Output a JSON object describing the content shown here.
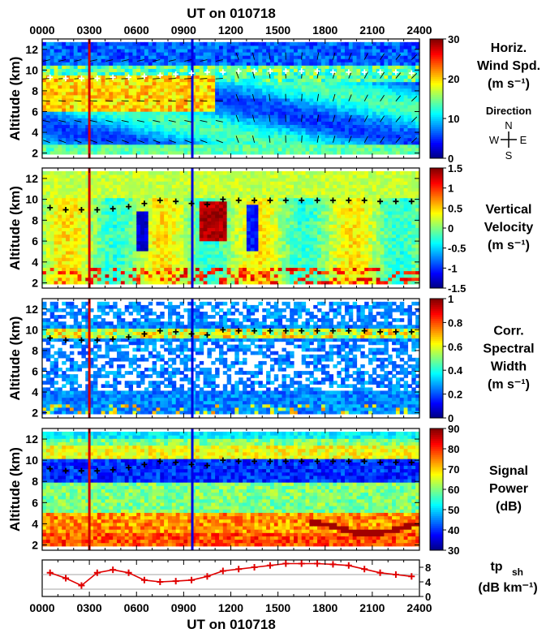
{
  "figure": {
    "top_title": "UT on 010718",
    "bottom_title": "UT on 010718"
  },
  "chart_data": [
    {
      "type": "heatmap",
      "id": "horiz",
      "ylabel": "Altitude (km)",
      "xlim": [
        0,
        2400
      ],
      "ylim": [
        1.5,
        13
      ],
      "x_ticks": [
        "0000",
        "0300",
        "0600",
        "0900",
        "1200",
        "1500",
        "1800",
        "2100",
        "2400"
      ],
      "y_ticks": [
        2,
        4,
        6,
        8,
        10,
        12
      ],
      "label_lines": [
        "Horiz.",
        "Wind Spd.",
        "(m s⁻¹)"
      ],
      "colorbar": {
        "min": 0,
        "max": 30,
        "ticks": [
          0,
          10,
          20,
          30
        ]
      },
      "direction_legend": {
        "title": "Direction",
        "N": "N",
        "S": "S",
        "E": "E",
        "W": "W"
      },
      "markers_alt_km": [
        9.3,
        9.2,
        9.2,
        9.2,
        9.3,
        9.3,
        9.4,
        9.5,
        9.6,
        9.7,
        9.8,
        9.8,
        9.9,
        9.9,
        9.9,
        9.9,
        9.9,
        9.9,
        9.8,
        9.8,
        9.8,
        9.8,
        9.8,
        9.7
      ]
    },
    {
      "type": "heatmap",
      "id": "vert",
      "ylabel": "Altitude (km)",
      "xlim": [
        0,
        2400
      ],
      "ylim": [
        1.5,
        13
      ],
      "y_ticks": [
        2,
        4,
        6,
        8,
        10,
        12
      ],
      "label_lines": [
        "Vertical",
        "Velocity",
        "(m s⁻¹)"
      ],
      "colorbar": {
        "min": -1.5,
        "max": 1.5,
        "ticks": [
          -1.5,
          -1,
          -0.5,
          0,
          0.5,
          1,
          1.5
        ],
        "tick_labels": [
          "-1.5",
          "-1",
          "-0.5",
          "0",
          "0.5",
          "1",
          "1.5"
        ]
      },
      "markers_alt_km": [
        9.2,
        9.0,
        9.0,
        9.0,
        9.1,
        9.3,
        9.6,
        9.9,
        9.8,
        9.6,
        9.5,
        10.0,
        9.9,
        9.9,
        9.9,
        9.9,
        9.9,
        9.9,
        9.9,
        9.9,
        9.9,
        9.8,
        9.8,
        9.8
      ]
    },
    {
      "type": "heatmap",
      "id": "width",
      "ylabel": "Altitude (km)",
      "xlim": [
        0,
        2400
      ],
      "ylim": [
        1.5,
        13
      ],
      "y_ticks": [
        2,
        4,
        6,
        8,
        10,
        12
      ],
      "label_lines": [
        "Corr.",
        "Spectral",
        "Width",
        "(m s⁻¹)"
      ],
      "colorbar": {
        "min": 0,
        "max": 1,
        "ticks": [
          0,
          0.2,
          0.4,
          0.6,
          0.8,
          1
        ],
        "tick_labels": [
          "0",
          "0.2",
          "0.4",
          "0.6",
          "0.8",
          "1"
        ]
      },
      "markers_alt_km": [
        9.2,
        9.0,
        9.0,
        9.0,
        9.1,
        9.3,
        9.6,
        9.9,
        9.8,
        9.6,
        9.5,
        10.0,
        9.9,
        9.9,
        9.9,
        9.9,
        9.9,
        9.9,
        9.9,
        9.9,
        9.9,
        9.8,
        9.8,
        9.8
      ]
    },
    {
      "type": "heatmap",
      "id": "power",
      "ylabel": "Altitude (km)",
      "xlim": [
        0,
        2400
      ],
      "ylim": [
        1.5,
        13
      ],
      "y_ticks": [
        2,
        4,
        6,
        8,
        10,
        12
      ],
      "label_lines": [
        "Signal",
        "Power",
        "(dB)"
      ],
      "colorbar": {
        "min": 30,
        "max": 90,
        "ticks": [
          30,
          40,
          50,
          60,
          70,
          80,
          90
        ]
      },
      "markers_alt_km": [
        9.2,
        9.0,
        9.0,
        9.0,
        9.1,
        9.3,
        9.6,
        9.9,
        9.8,
        9.6,
        9.5,
        10.0,
        9.9,
        9.9,
        9.9,
        9.9,
        9.9,
        9.9,
        9.9,
        9.9,
        9.9,
        9.8,
        9.8,
        9.8
      ]
    },
    {
      "type": "line",
      "id": "tpsh",
      "xlim": [
        0,
        2400
      ],
      "ylim": [
        0,
        10
      ],
      "x_ticks": [
        "0000",
        "0300",
        "0600",
        "0900",
        "1200",
        "1500",
        "1800",
        "2100",
        "2400"
      ],
      "y_ticks": [
        0,
        4,
        8
      ],
      "gridlines_y": [
        2,
        6
      ],
      "label_main": "tp",
      "label_sub": "sh",
      "label_units": "(dB km⁻¹)",
      "series": [
        {
          "color": "#e00000",
          "x": [
            50,
            150,
            250,
            350,
            450,
            550,
            650,
            750,
            850,
            950,
            1050,
            1150,
            1250,
            1350,
            1450,
            1550,
            1650,
            1750,
            1850,
            1950,
            2050,
            2150,
            2250,
            2350
          ],
          "y": [
            6.5,
            5.0,
            3.0,
            6.5,
            7.3,
            6.5,
            4.5,
            4.0,
            4.2,
            4.5,
            5.5,
            7.0,
            7.5,
            8.0,
            8.5,
            9.0,
            9.0,
            9.0,
            8.8,
            8.5,
            7.5,
            6.5,
            6.0,
            5.5
          ]
        }
      ]
    }
  ]
}
